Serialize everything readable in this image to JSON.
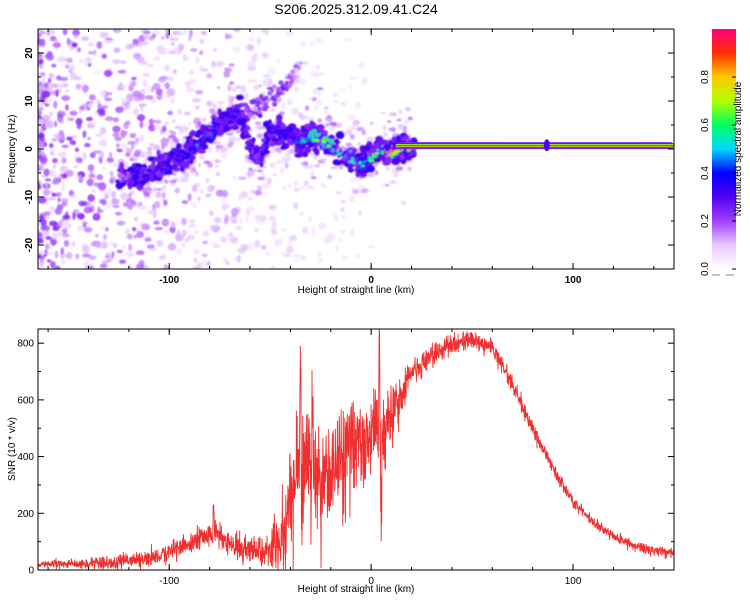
{
  "title": "S206.2025.312.09.41.C24",
  "chart_data": [
    {
      "type": "heatmap",
      "name": "spectrogram",
      "xlabel": "Height of straight line (km)",
      "ylabel": "Frequency (Hz)",
      "xlim": [
        -165,
        150
      ],
      "ylim": [
        -25,
        25
      ],
      "xticks": [
        -100,
        0,
        100
      ],
      "yticks": [
        -20,
        -10,
        0,
        10,
        20
      ],
      "colorbar": {
        "label": "Normalized spectral amplitude",
        "range": [
          0,
          1
        ],
        "ticks": [
          "0.0",
          "0.2",
          "0.4",
          "0.6",
          "0.8"
        ],
        "tick_values": [
          0,
          0.2,
          0.4,
          0.6,
          0.8
        ],
        "colors": [
          "#ffffff",
          "#e8c8ff",
          "#a040ff",
          "#5000f0",
          "#0000ff",
          "#00d8ff",
          "#00ff60",
          "#b0ff00",
          "#ffc800",
          "#ff3000",
          "#ff0080"
        ]
      },
      "ridge": {
        "x": [
          -125,
          -115,
          -105,
          -95,
          -85,
          -75,
          -70,
          -65,
          -60,
          -55,
          -50,
          -45,
          -40,
          -35,
          -30,
          -25,
          -20,
          -15,
          -10,
          -5,
          0,
          5,
          10,
          15,
          20,
          50,
          85,
          100,
          120,
          148
        ],
        "y": [
          -6,
          -6,
          -4,
          -2,
          1,
          5,
          7,
          8,
          0,
          -1,
          3,
          3,
          3,
          1,
          3,
          2,
          1,
          -1,
          -2,
          -3,
          -2,
          0,
          -1,
          0,
          0.5,
          0.5,
          0.8,
          0.5,
          0.5,
          0.6
        ],
        "amplitude": [
          0.15,
          0.3,
          0.3,
          0.35,
          0.4,
          0.35,
          0.3,
          0.3,
          0.25,
          0.3,
          0.35,
          0.35,
          0.35,
          0.45,
          0.55,
          0.6,
          0.6,
          0.6,
          0.55,
          0.5,
          0.55,
          0.65,
          0.75,
          0.85,
          0.9,
          0.9,
          0.85,
          0.85,
          0.8,
          0.75
        ]
      },
      "upper_branch": {
        "x": [
          -75,
          -65,
          -55,
          -45,
          -35
        ],
        "y": [
          4,
          7,
          9,
          12,
          17
        ],
        "amplitude": [
          0.15,
          0.2,
          0.2,
          0.2,
          0.1
        ]
      }
    },
    {
      "type": "line",
      "name": "snr",
      "xlabel": "Height of straight line (km)",
      "ylabel": "SNR (10 * v/v)",
      "xlim": [
        -165,
        150
      ],
      "ylim": [
        0,
        850
      ],
      "xticks": [
        -100,
        0,
        100
      ],
      "yticks": [
        0,
        200,
        400,
        600,
        800
      ],
      "color": "#f03030",
      "envelope": {
        "x": [
          -165,
          -130,
          -110,
          -90,
          -80,
          -75,
          -70,
          -60,
          -50,
          -45,
          -40,
          -35,
          -30,
          -25,
          -20,
          -15,
          -10,
          -5,
          0,
          2,
          5,
          10,
          20,
          30,
          40,
          50,
          55,
          60,
          70,
          80,
          90,
          100,
          110,
          120,
          130,
          140,
          150
        ],
        "y": [
          20,
          25,
          40,
          90,
          130,
          120,
          90,
          60,
          80,
          120,
          250,
          380,
          400,
          330,
          370,
          410,
          460,
          440,
          500,
          520,
          460,
          560,
          690,
          760,
          800,
          810,
          800,
          780,
          650,
          500,
          360,
          240,
          170,
          120,
          85,
          70,
          60
        ]
      },
      "noise": {
        "x": [
          -165,
          -80,
          -50,
          -40,
          -20,
          0,
          20,
          50,
          100,
          150
        ],
        "amplitude": [
          10,
          40,
          50,
          180,
          150,
          120,
          40,
          30,
          20,
          15
        ]
      },
      "spikes": [
        {
          "x": -78,
          "y": 210
        },
        {
          "x": -35,
          "y": 680
        },
        {
          "x": -29,
          "y": 570
        },
        {
          "x": 4,
          "y": 810
        },
        {
          "x": 5,
          "y": 240
        }
      ]
    }
  ]
}
